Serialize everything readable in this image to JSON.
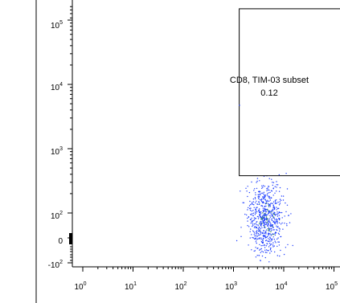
{
  "chart_data": {
    "type": "scatter",
    "title": "",
    "xlabel": "",
    "ylabel": "",
    "x_axis": {
      "scale": "log",
      "ticks": [
        {
          "base": "10",
          "exp": "0",
          "value": 1
        },
        {
          "base": "10",
          "exp": "1",
          "value": 10
        },
        {
          "base": "10",
          "exp": "2",
          "value": 100
        },
        {
          "base": "10",
          "exp": "3",
          "value": 1000
        },
        {
          "base": "10",
          "exp": "4",
          "value": 10000
        },
        {
          "base": "10",
          "exp": "5",
          "value": 100000
        }
      ]
    },
    "y_axis": {
      "scale": "biexponential",
      "ticks": [
        {
          "base": "10",
          "exp": "5",
          "value": 100000
        },
        {
          "base": "10",
          "exp": "4",
          "value": 10000
        },
        {
          "base": "10",
          "exp": "3",
          "value": 1000
        },
        {
          "base": "10",
          "exp": "2",
          "value": 100
        },
        {
          "base": "",
          "exp": "",
          "text": "0",
          "value": 0
        },
        {
          "base": "-10",
          "exp": "2",
          "value": -100
        }
      ]
    },
    "gate": {
      "name": "CD8, TIM-03 subset",
      "value": "0.12",
      "x_range": [
        1300,
        100000
      ],
      "y_range": [
        380,
        150000
      ]
    },
    "population": {
      "x_center": 4500,
      "y_center": 80,
      "count": 700
    },
    "colors": {
      "points": "#1f3fff",
      "dense_points": "#2a8a3a",
      "gate_line": "#000000",
      "axis": "#000000"
    }
  }
}
